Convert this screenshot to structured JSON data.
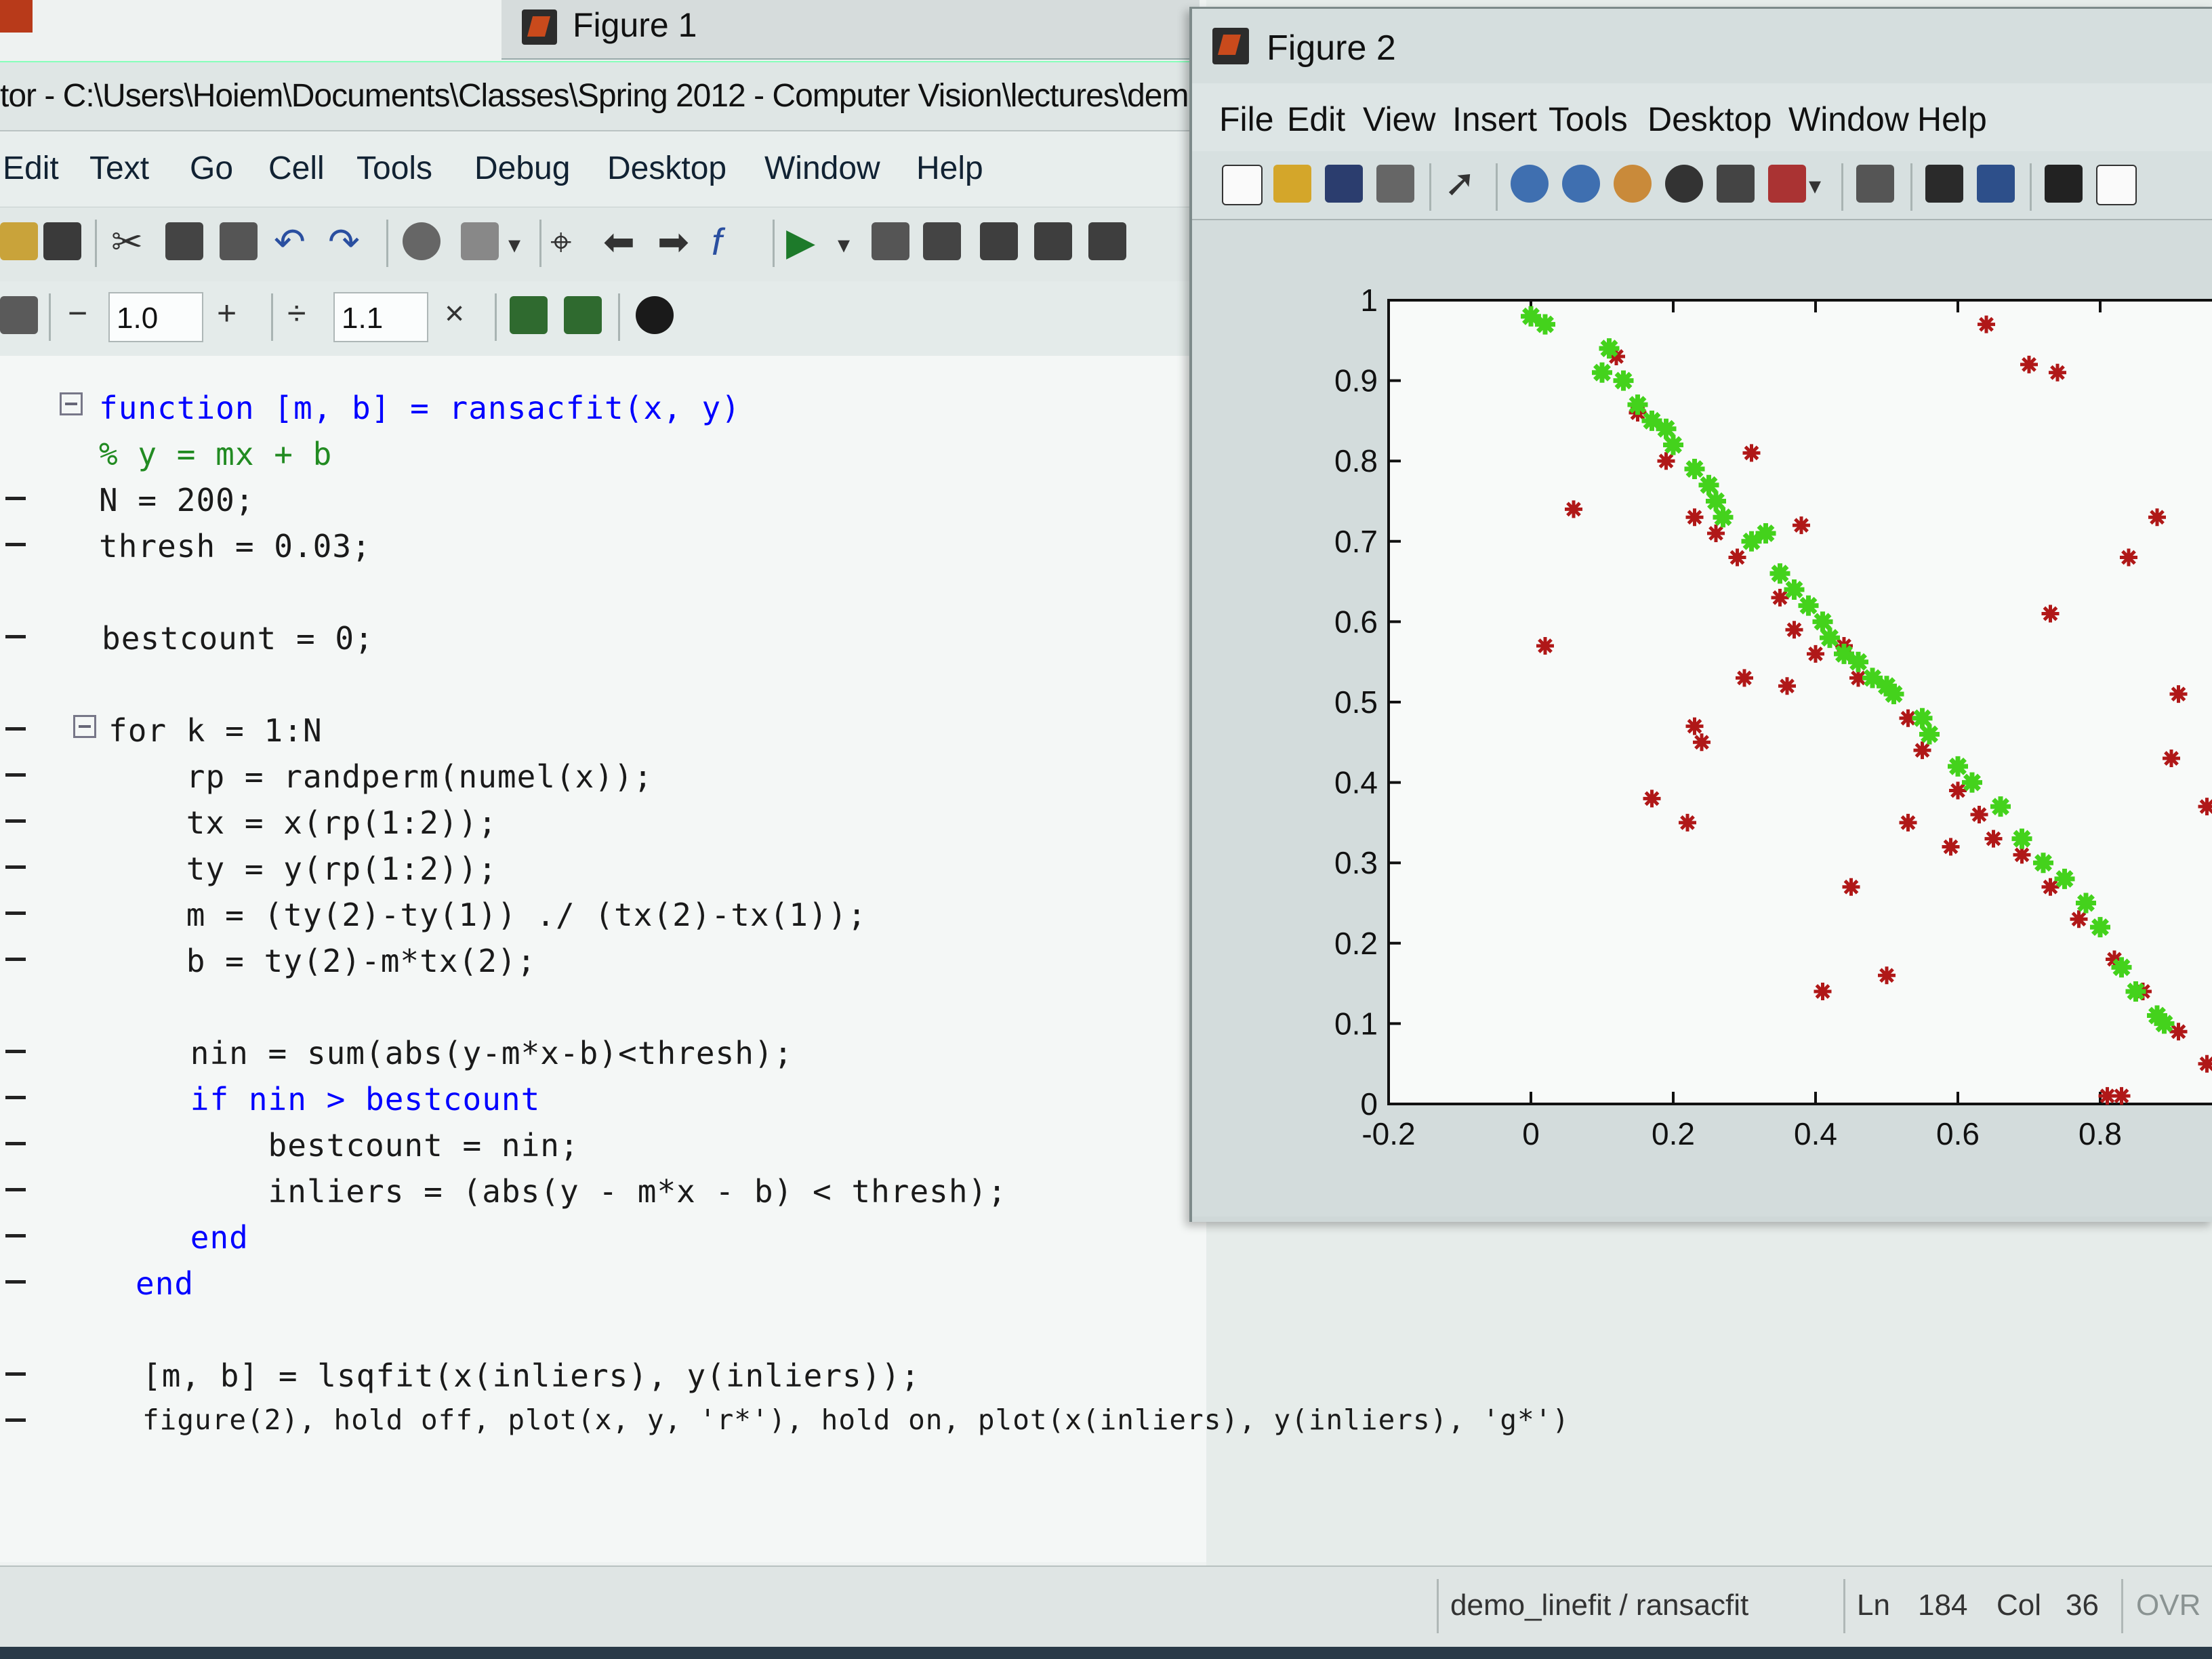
{
  "editor": {
    "figure1_tab": "Figure 1",
    "title": "tor - C:\\Users\\Hoiem\\Documents\\Classes\\Spring 2012 - Computer Vision\\lectures\\dem",
    "menu": [
      "Edit",
      "Text",
      "Go",
      "Cell",
      "Tools",
      "Debug",
      "Desktop",
      "Window",
      "Help"
    ],
    "cell_toolbar": {
      "minus": "−",
      "value1": "1.0",
      "plus": "+",
      "divide": "÷",
      "value2": "1.1",
      "times": "×"
    },
    "code_lines": [
      "function [m, b] = ransacfit(x, y)",
      "% y = mx + b",
      "N = 200;",
      "thresh = 0.03;",
      "",
      "bestcount = 0;",
      "",
      "for k = 1:N",
      "    rp = randperm(numel(x));",
      "    tx = x(rp(1:2));",
      "    ty = y(rp(1:2));",
      "    m = (ty(2)-ty(1)) ./ (tx(2)-tx(1));",
      "    b = ty(2)-m*tx(2);",
      "",
      "    nin = sum(abs(y-m*x-b)<thresh);",
      "    if nin > bestcount",
      "        bestcount = nin;",
      "        inliers = (abs(y - m*x - b) < thresh);",
      "    end",
      "end",
      "",
      "[m, b] = lsqfit(x(inliers), y(inliers));",
      "figure(2), hold off, plot(x, y, 'r*'), hold on, plot(x(inliers), y(inliers), 'g*')"
    ],
    "status": {
      "path": "demo_linefit / ransacfit",
      "ln_label": "Ln",
      "ln_value": "184",
      "col_label": "Col",
      "col_value": "36",
      "mode": "OVR"
    }
  },
  "figure2": {
    "title": "Figure 2",
    "menu": [
      "File",
      "Edit",
      "View",
      "Insert",
      "Tools",
      "Desktop",
      "Window",
      "Help"
    ]
  },
  "chart_data": {
    "type": "scatter",
    "title": "",
    "xlabel": "",
    "ylabel": "",
    "xlim": [
      -0.2,
      1.0
    ],
    "ylim": [
      0,
      1
    ],
    "xticks": [
      -0.2,
      0,
      0.2,
      0.4,
      0.6,
      0.8
    ],
    "xtick_labels": [
      "-0.2",
      "0",
      "0.2",
      "0.4",
      "0.6",
      "0.8"
    ],
    "yticks": [
      0,
      0.1,
      0.2,
      0.3,
      0.4,
      0.5,
      0.6,
      0.7,
      0.8,
      0.9,
      1
    ],
    "ytick_labels": [
      "0",
      "0.1",
      "0.2",
      "0.3",
      "0.4",
      "0.5",
      "0.6",
      "0.7",
      "0.8",
      "0.9",
      "1"
    ],
    "grid": false,
    "series": [
      {
        "marker": "r*",
        "color": "#b01818",
        "points": [
          [
            0.0,
            0.98
          ],
          [
            0.02,
            0.97
          ],
          [
            0.06,
            0.74
          ],
          [
            0.02,
            0.57
          ],
          [
            0.12,
            0.93
          ],
          [
            0.15,
            0.86
          ],
          [
            0.19,
            0.8
          ],
          [
            0.23,
            0.73
          ],
          [
            0.26,
            0.71
          ],
          [
            0.29,
            0.68
          ],
          [
            0.35,
            0.63
          ],
          [
            0.37,
            0.59
          ],
          [
            0.4,
            0.56
          ],
          [
            0.46,
            0.53
          ],
          [
            0.53,
            0.48
          ],
          [
            0.55,
            0.44
          ],
          [
            0.6,
            0.39
          ],
          [
            0.63,
            0.36
          ],
          [
            0.65,
            0.33
          ],
          [
            0.69,
            0.31
          ],
          [
            0.73,
            0.27
          ],
          [
            0.77,
            0.23
          ],
          [
            0.82,
            0.18
          ],
          [
            0.86,
            0.14
          ],
          [
            0.91,
            0.09
          ],
          [
            0.95,
            0.05
          ],
          [
            0.31,
            0.81
          ],
          [
            0.38,
            0.72
          ],
          [
            0.36,
            0.52
          ],
          [
            0.3,
            0.53
          ],
          [
            0.23,
            0.47
          ],
          [
            0.24,
            0.45
          ],
          [
            0.17,
            0.38
          ],
          [
            0.22,
            0.35
          ],
          [
            0.44,
            0.57
          ],
          [
            0.53,
            0.35
          ],
          [
            0.59,
            0.32
          ],
          [
            0.45,
            0.27
          ],
          [
            0.41,
            0.14
          ],
          [
            0.5,
            0.16
          ],
          [
            0.64,
            0.97
          ],
          [
            0.7,
            0.92
          ],
          [
            0.74,
            0.91
          ],
          [
            0.88,
            0.73
          ],
          [
            0.84,
            0.68
          ],
          [
            0.73,
            0.61
          ],
          [
            0.91,
            0.51
          ],
          [
            0.9,
            0.43
          ],
          [
            0.95,
            0.37
          ],
          [
            0.83,
            0.01
          ],
          [
            0.81,
            0.01
          ]
        ]
      },
      {
        "marker": "g*",
        "color": "#44d21c",
        "points": [
          [
            0.0,
            0.98
          ],
          [
            0.02,
            0.97
          ],
          [
            0.11,
            0.94
          ],
          [
            0.1,
            0.91
          ],
          [
            0.13,
            0.9
          ],
          [
            0.15,
            0.87
          ],
          [
            0.17,
            0.85
          ],
          [
            0.19,
            0.84
          ],
          [
            0.2,
            0.82
          ],
          [
            0.23,
            0.79
          ],
          [
            0.25,
            0.77
          ],
          [
            0.26,
            0.75
          ],
          [
            0.27,
            0.73
          ],
          [
            0.31,
            0.7
          ],
          [
            0.33,
            0.71
          ],
          [
            0.35,
            0.66
          ],
          [
            0.37,
            0.64
          ],
          [
            0.39,
            0.62
          ],
          [
            0.41,
            0.6
          ],
          [
            0.42,
            0.58
          ],
          [
            0.44,
            0.56
          ],
          [
            0.46,
            0.55
          ],
          [
            0.48,
            0.53
          ],
          [
            0.5,
            0.52
          ],
          [
            0.51,
            0.51
          ],
          [
            0.55,
            0.48
          ],
          [
            0.56,
            0.46
          ],
          [
            0.6,
            0.42
          ],
          [
            0.62,
            0.4
          ],
          [
            0.66,
            0.37
          ],
          [
            0.69,
            0.33
          ],
          [
            0.72,
            0.3
          ],
          [
            0.75,
            0.28
          ],
          [
            0.78,
            0.25
          ],
          [
            0.8,
            0.22
          ],
          [
            0.83,
            0.17
          ],
          [
            0.85,
            0.14
          ],
          [
            0.88,
            0.11
          ],
          [
            0.89,
            0.1
          ]
        ]
      }
    ]
  }
}
